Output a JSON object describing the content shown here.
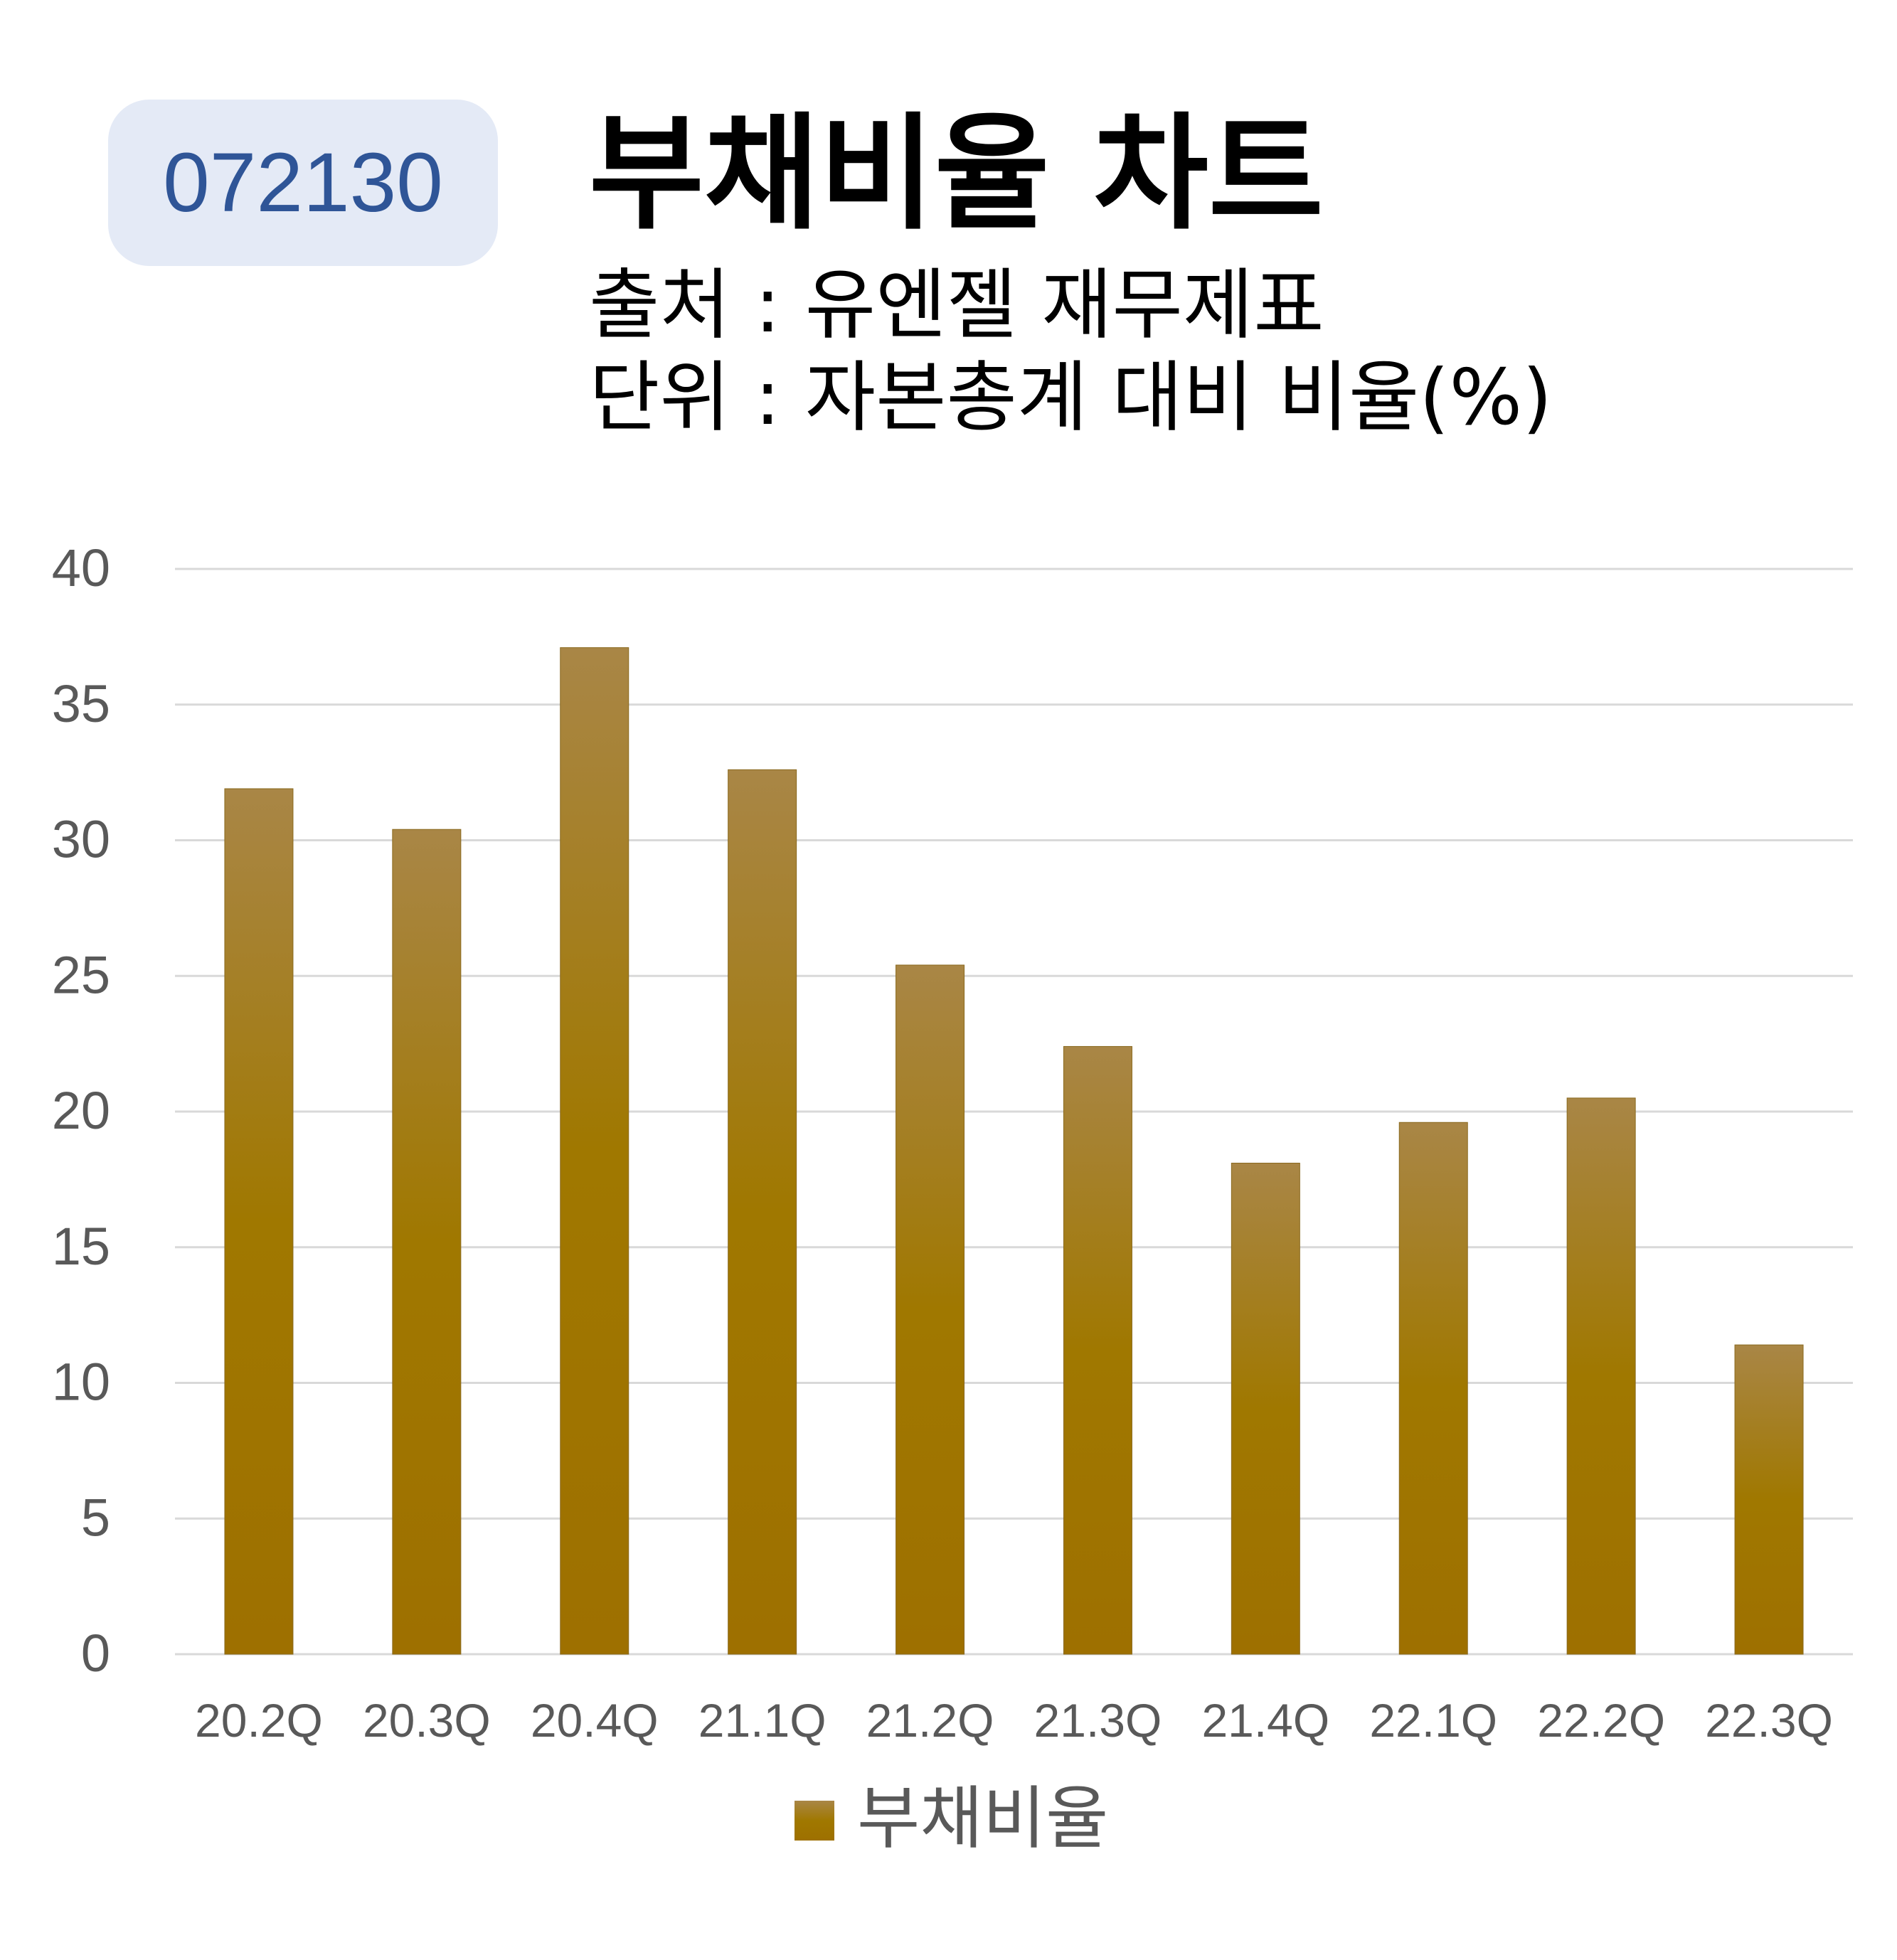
{
  "header": {
    "ticker": "072130",
    "title": "부채비율 차트",
    "source": "출처 : 유엔젤 재무제표",
    "unit": "단위 : 자본총계 대비 비율(%)"
  },
  "colors": {
    "bar_top": "#a98646",
    "bar_bottom": "#9e7000",
    "gridline": "#d9d9d9",
    "tick_text": "#595959",
    "badge_bg": "#e4eaf6",
    "badge_text": "#2f5597"
  },
  "chart_data": {
    "type": "bar",
    "categories": [
      "20.2Q",
      "20.3Q",
      "20.4Q",
      "21.1Q",
      "21.2Q",
      "21.3Q",
      "21.4Q",
      "22.1Q",
      "22.2Q",
      "22.3Q"
    ],
    "series": [
      {
        "name": "부채비율",
        "values": [
          31.9,
          30.4,
          37.1,
          32.6,
          25.4,
          22.4,
          18.1,
          19.6,
          20.5,
          11.4
        ]
      }
    ],
    "ylim": [
      0,
      40
    ],
    "yticks": [
      0,
      5,
      10,
      15,
      20,
      25,
      30,
      35,
      40
    ],
    "grid": true,
    "legend": "bottom"
  }
}
